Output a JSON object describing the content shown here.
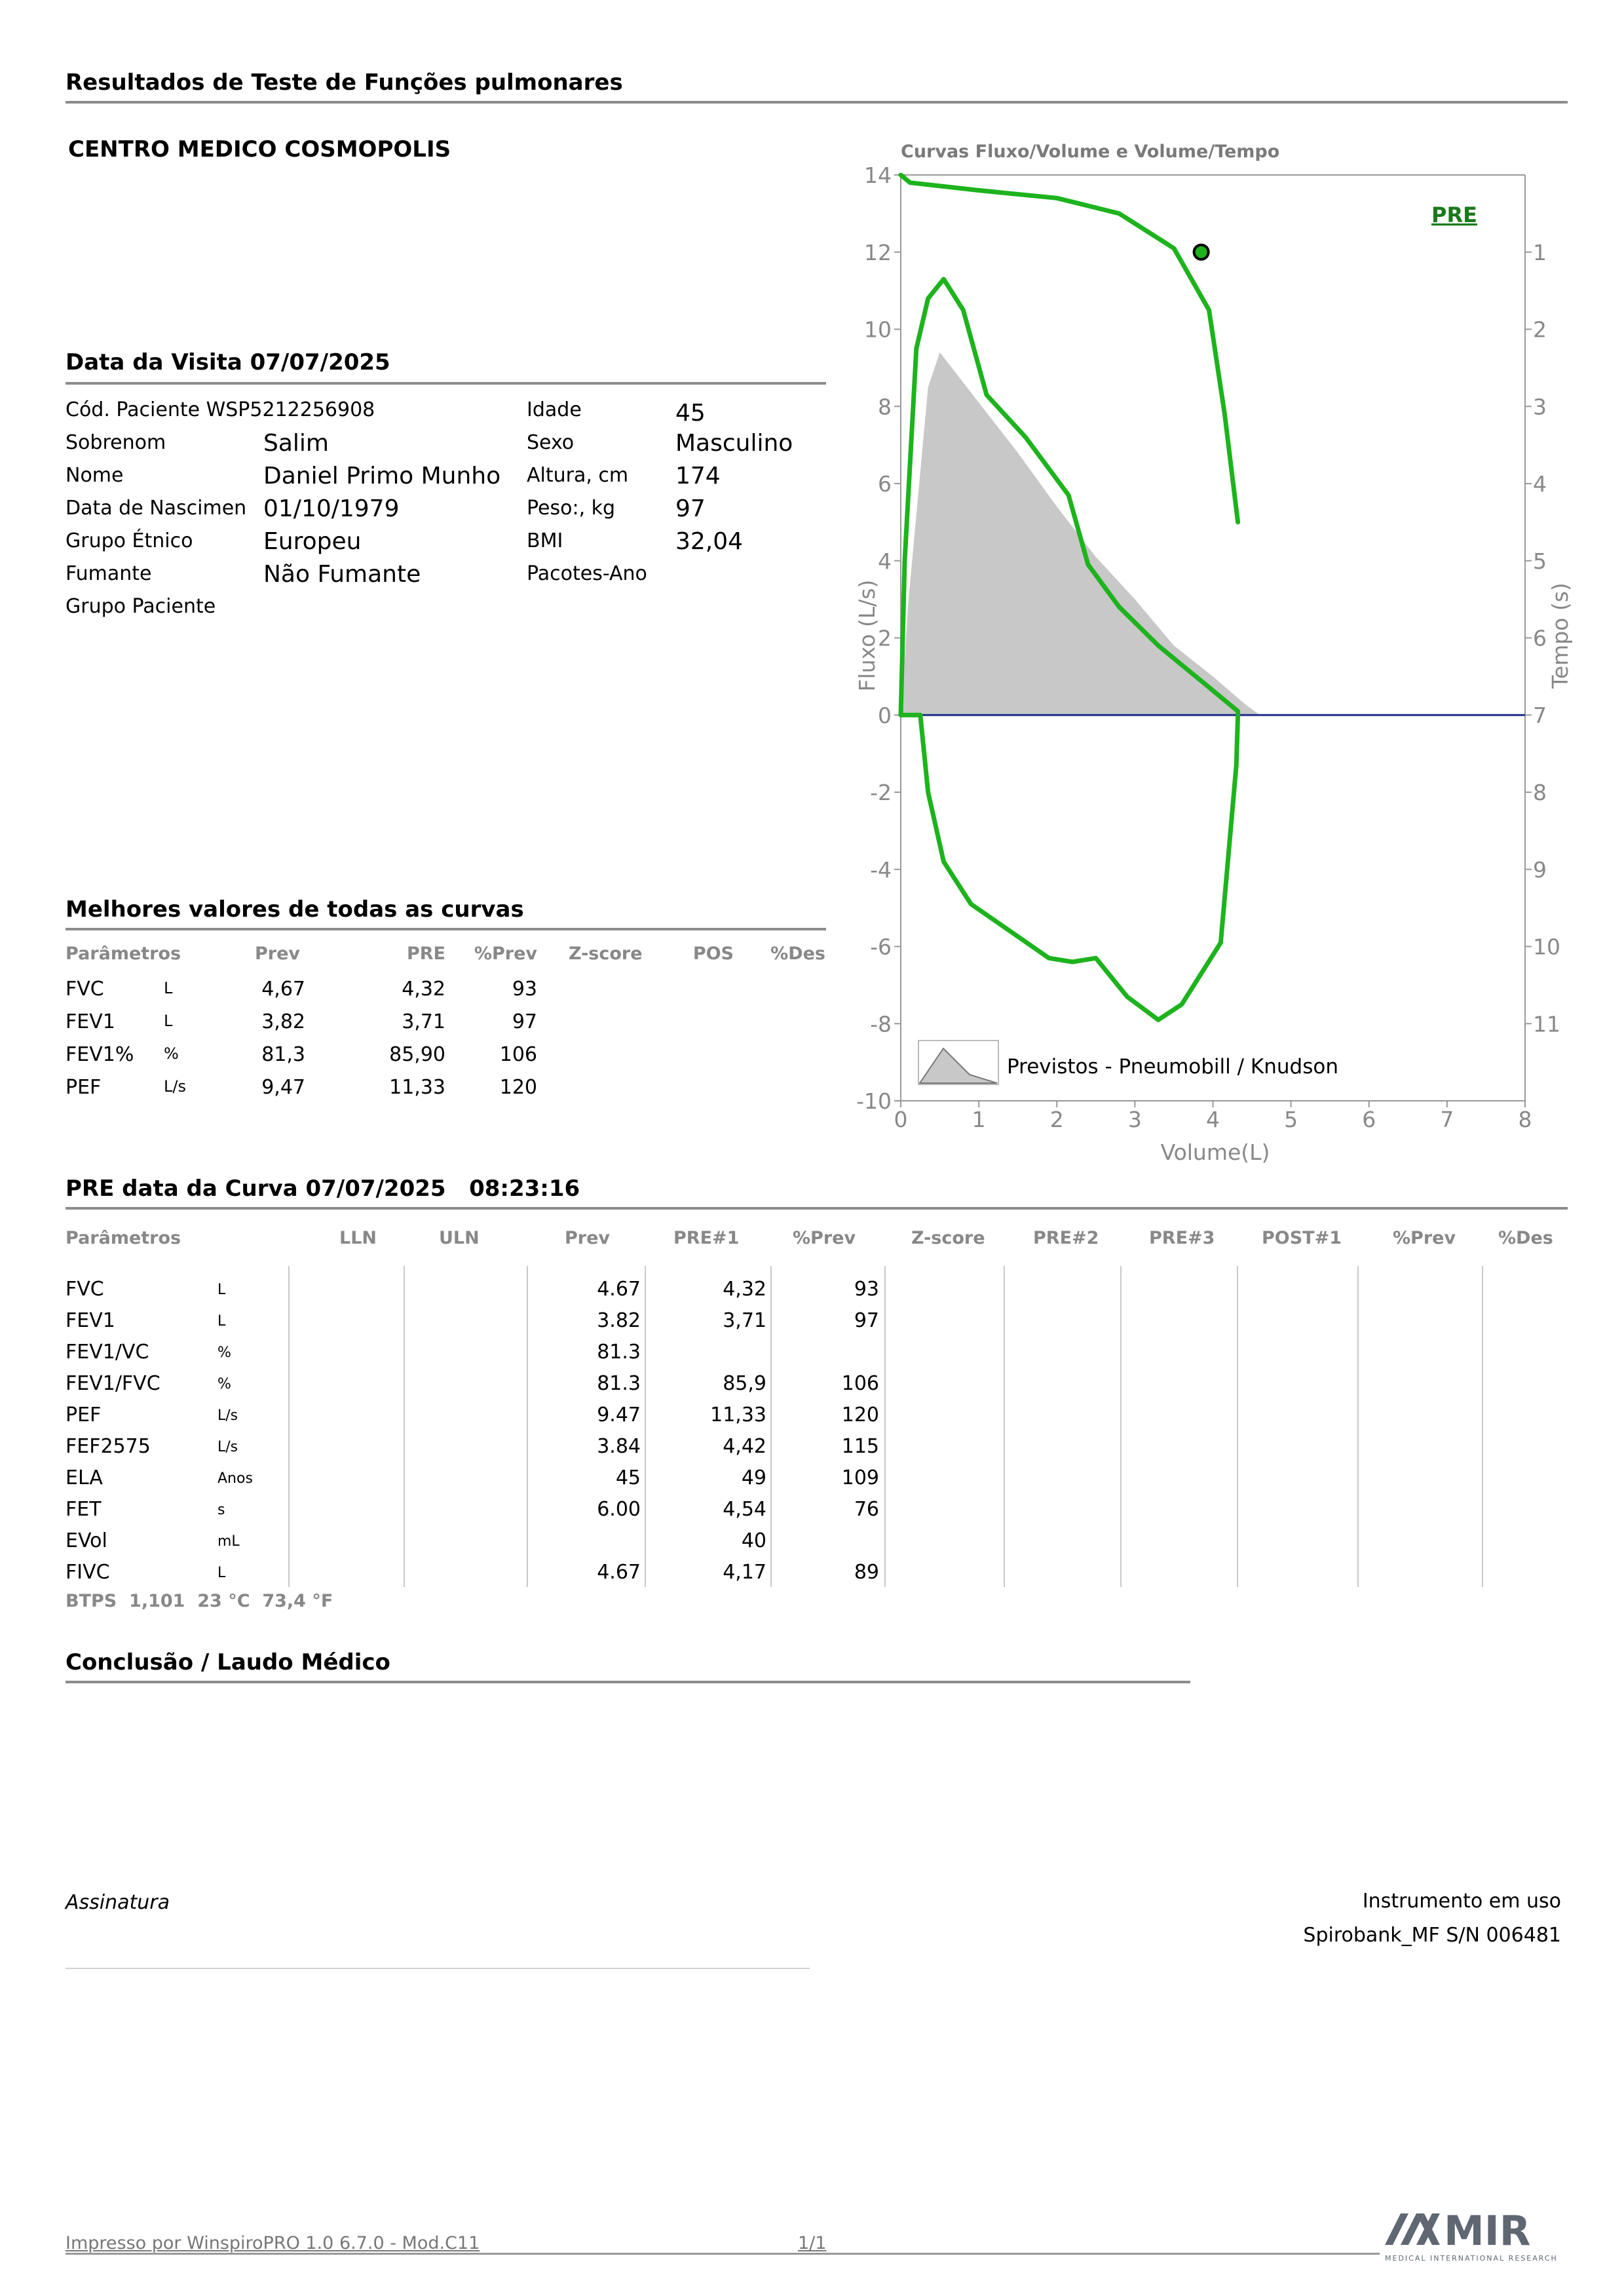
{
  "title": "Resultados de Teste de Funções pulmonares",
  "center_name": "CENTRO MEDICO COSMOPOLIS",
  "visit": {
    "heading": "Data da Visita 07/07/2025",
    "left": [
      {
        "label": "Cód. Paciente WSP5212256908",
        "value": ""
      },
      {
        "label": "Sobrenom",
        "value": "Salim"
      },
      {
        "label": "Nome",
        "value": "Daniel Primo Munho"
      },
      {
        "label": "Data de Nascimen",
        "value": "01/10/1979"
      },
      {
        "label": "Grupo Étnico",
        "value": "Europeu"
      },
      {
        "label": "Fumante",
        "value": "Não Fumante"
      },
      {
        "label": "Grupo Paciente",
        "value": ""
      }
    ],
    "right": [
      {
        "label": "Idade",
        "value": "45"
      },
      {
        "label": "Sexo",
        "value": "Masculino"
      },
      {
        "label": "Altura, cm",
        "value": "174"
      },
      {
        "label": "Peso:, kg",
        "value": "97"
      },
      {
        "label": "BMI",
        "value": "32,04"
      },
      {
        "label": "Pacotes-Ano",
        "value": ""
      }
    ]
  },
  "best": {
    "heading": "Melhores valores de todas as curvas",
    "headers": [
      "Parâmetros",
      "Prev",
      "PRE",
      "%Prev",
      "Z-score",
      "POS",
      "%Des"
    ],
    "rows": [
      {
        "param": "FVC",
        "unit": "L",
        "prev": "4,67",
        "pre": "4,32",
        "pct": "93"
      },
      {
        "param": "FEV1",
        "unit": "L",
        "prev": "3,82",
        "pre": "3,71",
        "pct": "97"
      },
      {
        "param": "FEV1%",
        "unit": "%",
        "prev": "81,3",
        "pre": "85,90",
        "pct": "106"
      },
      {
        "param": "PEF",
        "unit": "L/s",
        "prev": "9,47",
        "pre": "11,33",
        "pct": "120"
      }
    ]
  },
  "curve": {
    "heading": "PRE data da Curva 07/07/2025   08:23:16",
    "headers": [
      "Parâmetros",
      "LLN",
      "ULN",
      "Prev",
      "PRE#1",
      "%Prev",
      "Z-score",
      "PRE#2",
      "PRE#3",
      "POST#1",
      "%Prev",
      "%Des"
    ],
    "rows": [
      {
        "param": "FVC",
        "unit": "L",
        "prev": "4.67",
        "pre1": "4,32",
        "pct": "93"
      },
      {
        "param": "FEV1",
        "unit": "L",
        "prev": "3.82",
        "pre1": "3,71",
        "pct": "97"
      },
      {
        "param": "FEV1/VC",
        "unit": "%",
        "prev": "81.3",
        "pre1": "",
        "pct": ""
      },
      {
        "param": "FEV1/FVC",
        "unit": "%",
        "prev": "81.3",
        "pre1": "85,9",
        "pct": "106"
      },
      {
        "param": "PEF",
        "unit": "L/s",
        "prev": "9.47",
        "pre1": "11,33",
        "pct": "120"
      },
      {
        "param": "FEF2575",
        "unit": "L/s",
        "prev": "3.84",
        "pre1": "4,42",
        "pct": "115"
      },
      {
        "param": "ELA",
        "unit": "Anos",
        "prev": "45",
        "pre1": "49",
        "pct": "109"
      },
      {
        "param": "FET",
        "unit": "s",
        "prev": "6.00",
        "pre1": "4,54",
        "pct": "76"
      },
      {
        "param": "EVol",
        "unit": "mL",
        "prev": "",
        "pre1": "40",
        "pct": ""
      },
      {
        "param": "FIVC",
        "unit": "L",
        "prev": "4.67",
        "pre1": "4,17",
        "pct": "89"
      }
    ],
    "btps": "BTPS  1,101  23 °C  73,4 °F"
  },
  "conclusion_heading": "Conclusão / Laudo Médico",
  "signature_label": "Assinatura",
  "instrument_label": "Instrumento em uso",
  "instrument_value": "Spirobank_MF S/N 006481",
  "footer_left": "Impresso por WinspiroPRO 1.0 6.7.0 - Mod.C11",
  "footer_page": "1/1",
  "logo_text": "MIR",
  "logo_sub": "MEDICAL INTERNATIONAL RESEARCH",
  "chart_data": {
    "type": "line",
    "title": "Curvas Fluxo/Volume e Volume/Tempo",
    "xlabel": "Volume(L)",
    "ylabel": "Fluxo (L/s)",
    "y2label": "Tempo (s)",
    "xlim": [
      0,
      8
    ],
    "ylim": [
      -10,
      14
    ],
    "y2lim": [
      0,
      11.7
    ],
    "x_ticks": [
      "0",
      "1",
      "2",
      "3",
      "4",
      "5",
      "6",
      "7",
      "8"
    ],
    "y_ticks": [
      "-10",
      "-8",
      "-6",
      "-4",
      "-2",
      "0",
      "2",
      "4",
      "6",
      "8",
      "10",
      "12",
      "14"
    ],
    "y2_ticks": [
      "1",
      "2",
      "3",
      "4",
      "5",
      "6",
      "7",
      "8",
      "9",
      "10",
      "11"
    ],
    "badge": "PRE",
    "legend": "Previstos - Pneumobill / Knudson",
    "colors": {
      "measured": "#1db31d",
      "predicted": "#c8c8c8",
      "baseline": "#1c2f8a"
    },
    "series": [
      {
        "role": "predicted",
        "points": [
          [
            0,
            0
          ],
          [
            0.1,
            3
          ],
          [
            0.35,
            8.5
          ],
          [
            0.5,
            9.4
          ],
          [
            1,
            8.1
          ],
          [
            1.5,
            6.8
          ],
          [
            2,
            5.4
          ],
          [
            2.5,
            4.1
          ],
          [
            3,
            3
          ],
          [
            3.5,
            1.8
          ],
          [
            4,
            1
          ],
          [
            4.4,
            0.3
          ],
          [
            4.6,
            0
          ]
        ]
      },
      {
        "role": "expiratory",
        "points": [
          [
            0,
            0
          ],
          [
            0.05,
            4
          ],
          [
            0.2,
            9.5
          ],
          [
            0.35,
            10.8
          ],
          [
            0.55,
            11.3
          ],
          [
            0.8,
            10.5
          ],
          [
            1.1,
            8.3
          ],
          [
            1.6,
            7.2
          ],
          [
            2.15,
            5.7
          ],
          [
            2.4,
            3.9
          ],
          [
            2.8,
            2.8
          ],
          [
            3.3,
            1.8
          ],
          [
            3.9,
            0.8
          ],
          [
            4.32,
            0.1
          ],
          [
            4.32,
            0
          ]
        ]
      },
      {
        "role": "inspiratory",
        "points": [
          [
            0,
            0
          ],
          [
            0.25,
            0
          ],
          [
            0.35,
            -2
          ],
          [
            0.55,
            -3.8
          ],
          [
            0.9,
            -4.9
          ],
          [
            1.4,
            -5.6
          ],
          [
            1.9,
            -6.3
          ],
          [
            2.2,
            -6.4
          ],
          [
            2.5,
            -6.3
          ],
          [
            2.9,
            -7.3
          ],
          [
            3.3,
            -7.9
          ],
          [
            3.6,
            -7.5
          ],
          [
            4.1,
            -5.9
          ],
          [
            4.3,
            -1.3
          ],
          [
            4.32,
            0
          ]
        ]
      },
      {
        "role": "volume-time",
        "points": [
          [
            0,
            0
          ],
          [
            0.12,
            0.1
          ],
          [
            1,
            0.2
          ],
          [
            2,
            0.3
          ],
          [
            2.8,
            0.5
          ],
          [
            3.5,
            0.95
          ],
          [
            3.95,
            1.75
          ],
          [
            4.15,
            3.1
          ],
          [
            4.32,
            4.5
          ]
        ]
      }
    ],
    "marker": {
      "volume": 3.85,
      "time": 1.0
    }
  }
}
